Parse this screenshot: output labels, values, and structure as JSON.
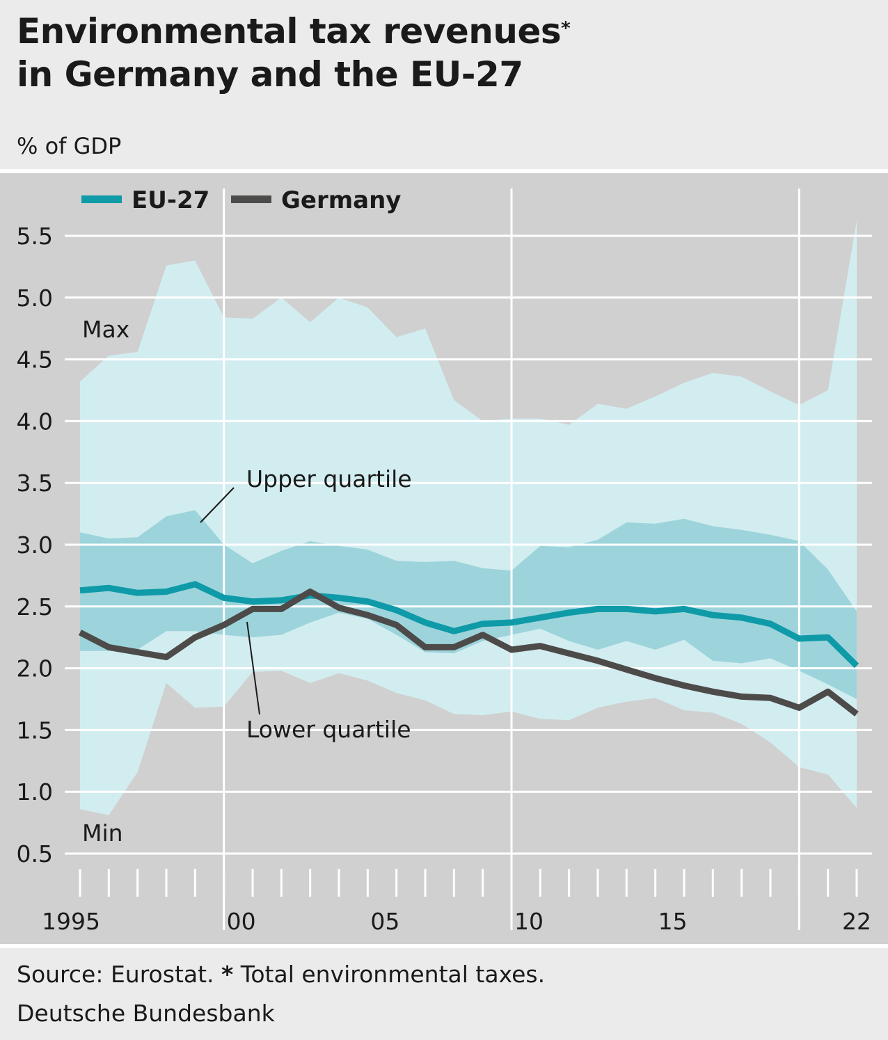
{
  "header": {
    "title_line1": "Environmental tax revenues",
    "title_asterisk": "*",
    "title_line2": "in Germany and the EU-27",
    "unit": "% of GDP"
  },
  "footer": {
    "source_prefix": "Source: Eurostat.",
    "source_star": "*",
    "source_note": "Total environmental taxes.",
    "publisher": "Deutsche Bundesbank"
  },
  "colors": {
    "background": "#ebebeb",
    "plot_background": "#d0d0d0",
    "range_band": "#d2edf0",
    "quartile_band": "#9dd4dc",
    "eu27": "#0f9aa8",
    "germany": "#4d4b49",
    "gridline": "#ffffff"
  },
  "chart_data": {
    "type": "line",
    "title": "Environmental tax revenues* in Germany and the EU-27",
    "ylabel": "% of GDP",
    "xlabel": "",
    "ylim": [
      0.5,
      5.5
    ],
    "yticks": [
      "5.5",
      "5.0",
      "4.5",
      "4.0",
      "3.5",
      "3.0",
      "2.5",
      "2.0",
      "1.5",
      "1.0",
      "0.5"
    ],
    "ytick_values": [
      5.5,
      5.0,
      4.5,
      4.0,
      3.5,
      3.0,
      2.5,
      2.0,
      1.5,
      1.0,
      0.5
    ],
    "xlim": [
      1995,
      2022
    ],
    "xtick_labels": [
      "1995",
      "00",
      "05",
      "10",
      "15",
      "22"
    ],
    "xtick_years": [
      1995,
      2000,
      2005,
      2010,
      2015,
      2022
    ],
    "x": [
      1995,
      1996,
      1997,
      1998,
      1999,
      2000,
      2001,
      2002,
      2003,
      2004,
      2005,
      2006,
      2007,
      2008,
      2009,
      2010,
      2011,
      2012,
      2013,
      2014,
      2015,
      2016,
      2017,
      2018,
      2019,
      2020,
      2021,
      2022
    ],
    "grid": true,
    "legend_position": "top-left",
    "series": [
      {
        "name": "EU-27",
        "values": [
          2.63,
          2.65,
          2.61,
          2.62,
          2.68,
          2.57,
          2.54,
          2.55,
          2.59,
          2.57,
          2.54,
          2.47,
          2.37,
          2.3,
          2.36,
          2.37,
          2.41,
          2.45,
          2.48,
          2.48,
          2.46,
          2.48,
          2.43,
          2.41,
          2.36,
          2.24,
          2.25,
          2.02
        ]
      },
      {
        "name": "Germany",
        "values": [
          2.29,
          2.17,
          2.13,
          2.09,
          2.25,
          2.35,
          2.48,
          2.48,
          2.62,
          2.49,
          2.43,
          2.35,
          2.17,
          2.17,
          2.27,
          2.15,
          2.18,
          2.12,
          2.06,
          1.99,
          1.92,
          1.86,
          1.81,
          1.77,
          1.76,
          1.68,
          1.81,
          1.63
        ]
      }
    ],
    "bands": [
      {
        "name": "Max",
        "values": [
          4.32,
          4.53,
          4.56,
          5.26,
          5.3,
          4.84,
          4.83,
          5.0,
          4.8,
          5.0,
          4.92,
          4.68,
          4.75,
          4.17,
          4.0,
          4.02,
          4.02,
          3.97,
          4.14,
          4.1,
          4.2,
          4.31,
          4.39,
          4.36,
          4.24,
          4.13,
          4.25,
          5.62
        ]
      },
      {
        "name": "Min",
        "values": [
          0.86,
          0.81,
          1.16,
          1.88,
          1.68,
          1.69,
          1.97,
          1.98,
          1.88,
          1.96,
          1.9,
          1.8,
          1.74,
          1.63,
          1.62,
          1.65,
          1.59,
          1.58,
          1.68,
          1.73,
          1.76,
          1.66,
          1.64,
          1.55,
          1.4,
          1.2,
          1.14,
          0.87
        ]
      },
      {
        "name": "Upper quartile",
        "values": [
          3.1,
          3.05,
          3.06,
          3.23,
          3.28,
          3.0,
          2.85,
          2.95,
          3.03,
          2.99,
          2.96,
          2.87,
          2.86,
          2.87,
          2.81,
          2.79,
          2.99,
          2.98,
          3.04,
          3.18,
          3.17,
          3.21,
          3.15,
          3.12,
          3.08,
          3.03,
          2.8,
          2.46
        ]
      },
      {
        "name": "Lower quartile",
        "values": [
          2.14,
          2.14,
          2.15,
          2.3,
          2.3,
          2.27,
          2.25,
          2.27,
          2.37,
          2.45,
          2.4,
          2.27,
          2.13,
          2.12,
          2.22,
          2.27,
          2.32,
          2.22,
          2.15,
          2.22,
          2.15,
          2.23,
          2.06,
          2.04,
          2.08,
          1.98,
          1.87,
          1.75
        ]
      }
    ],
    "legend": [
      {
        "label": "EU-27",
        "color": "#0f9aa8"
      },
      {
        "label": "Germany",
        "color": "#4d4b49"
      }
    ],
    "annotations": {
      "max": "Max",
      "min": "Min",
      "upper_quartile": "Upper quartile",
      "lower_quartile": "Lower quartile"
    }
  }
}
